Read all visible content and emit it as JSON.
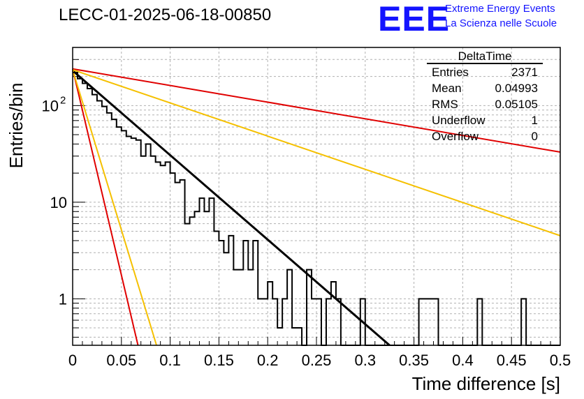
{
  "header": {
    "run_id": "LECC-01-2025-06-18-00850",
    "logo_text": "EEE",
    "logo_line1": "Extreme Energy Events",
    "logo_line2": "La Scienza nelle Scuole"
  },
  "stats_box": {
    "title": "DeltaTime",
    "rows": [
      {
        "key": "Entries",
        "value": "2371"
      },
      {
        "key": "Mean",
        "value": "0.04993"
      },
      {
        "key": "RMS",
        "value": "0.05105"
      },
      {
        "key": "Underflow",
        "value": "1"
      },
      {
        "key": "Overflow",
        "value": "0"
      }
    ]
  },
  "colors": {
    "histogram": "#000000",
    "fit": "#000000",
    "bound_red": "#e00000",
    "bound_orange": "#f5c000",
    "grid": "#b0b0b0"
  },
  "chart_data": {
    "type": "line",
    "title": "LECC-01-2025-06-18-00850",
    "xlabel": "Time difference [s]",
    "ylabel": "Entries/bin",
    "xlim": [
      0,
      0.5
    ],
    "ylim": [
      0.33,
      400
    ],
    "log_y": true,
    "grid": true,
    "legend": "top-right",
    "x_ticks": [
      {
        "v": 0,
        "label": "0"
      },
      {
        "v": 0.05,
        "label": "0.05"
      },
      {
        "v": 0.1,
        "label": "0.1"
      },
      {
        "v": 0.15,
        "label": "0.15"
      },
      {
        "v": 0.2,
        "label": "0.2"
      },
      {
        "v": 0.25,
        "label": "0.25"
      },
      {
        "v": 0.3,
        "label": "0.3"
      },
      {
        "v": 0.35,
        "label": "0.35"
      },
      {
        "v": 0.4,
        "label": "0.4"
      },
      {
        "v": 0.45,
        "label": "0.45"
      },
      {
        "v": 0.5,
        "label": "0.5"
      }
    ],
    "y_ticks": [
      {
        "v": 1,
        "label": "1"
      },
      {
        "v": 10,
        "label": "10"
      },
      {
        "v": 100,
        "label": "10",
        "sup": "2"
      }
    ],
    "bin_width": 0.005,
    "histogram": {
      "name": "DeltaTime",
      "counts": [
        220,
        190,
        170,
        150,
        130,
        112,
        98,
        84,
        72,
        60,
        55,
        48,
        46,
        44,
        30,
        40,
        30,
        26,
        24,
        26,
        20,
        16,
        17,
        6,
        7,
        8,
        11,
        8,
        11,
        5,
        4,
        3,
        4.5,
        2,
        2,
        4,
        2,
        4,
        1,
        1,
        1.5,
        1,
        0.5,
        1,
        2,
        0.5,
        0.5,
        0,
        2,
        1,
        1,
        0,
        1,
        1.5,
        1,
        0,
        0,
        0,
        0,
        1,
        0,
        0,
        0,
        0,
        0,
        0,
        0,
        0,
        0,
        0,
        0,
        1,
        1,
        1,
        1,
        0,
        0,
        0,
        0,
        0,
        0,
        0,
        0,
        1,
        0,
        0,
        0,
        0,
        0,
        0,
        0,
        0,
        1,
        0,
        0,
        0,
        0,
        0,
        0,
        0
      ]
    },
    "series": [
      {
        "x": [
          0.0,
          0.325
        ],
        "y": [
          230,
          0.32
        ]
      },
      {
        "x": [
          0.0,
          0.5
        ],
        "y": [
          240,
          33
        ]
      },
      {
        "x": [
          0.0,
          0.067
        ],
        "y": [
          240,
          0.33
        ]
      },
      {
        "x": [
          0.0,
          0.5
        ],
        "y": [
          235,
          4.5
        ]
      },
      {
        "x": [
          0.0,
          0.086
        ],
        "y": [
          235,
          0.33
        ]
      }
    ],
    "series_colors": [
      "#000000",
      "#e00000",
      "#e00000",
      "#f5c000",
      "#f5c000"
    ],
    "series_widths": [
      3,
      2,
      2,
      2,
      2
    ]
  }
}
